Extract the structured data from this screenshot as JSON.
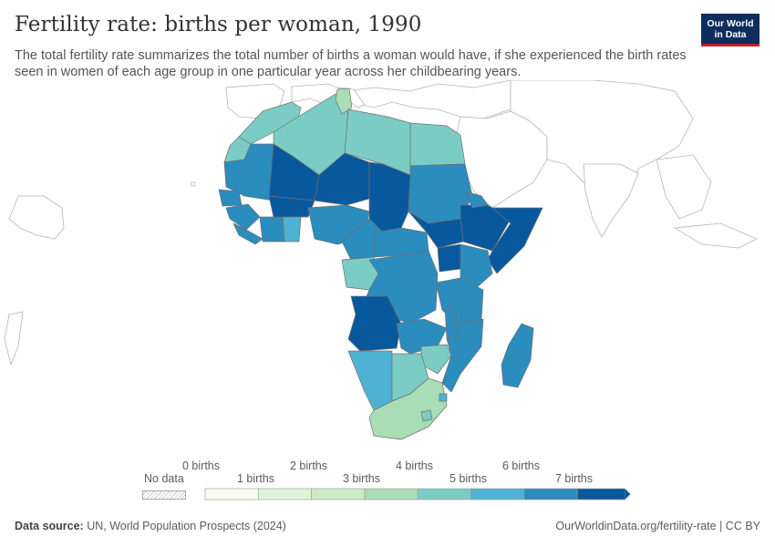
{
  "header": {
    "title": "Fertility rate: births per woman, 1990",
    "subtitle": "The total fertility rate summarizes the total number of births a woman would have, if she experienced the birth rates seen in women of each age group in one particular year across her childbearing years."
  },
  "logo": {
    "line1": "Our World",
    "line2": "in Data",
    "bg_color": "#0c2d5e",
    "accent_color": "#c2202f"
  },
  "legend": {
    "no_data_label": "No data",
    "top_labels": [
      "0 births",
      "2 births",
      "4 births",
      "6 births"
    ],
    "bottom_labels": [
      "1 births",
      "3 births",
      "5 births",
      "7 births"
    ],
    "colors": [
      "#f7fcf0",
      "#e0f3db",
      "#ccebc5",
      "#a8ddb5",
      "#7bccc4",
      "#4eb3d3",
      "#2b8cbe",
      "#08589e"
    ]
  },
  "footer": {
    "source_label": "Data source:",
    "source_text": "UN, World Population Prospects (2024)",
    "url_text": "OurWorldinData.org/fertility-rate | CC BY"
  },
  "map_data": {
    "region": "Africa",
    "year": 1990,
    "colors": {
      "c3": "#ccebc5",
      "c4": "#a8ddb5",
      "c5": "#7bccc4",
      "c6": "#4eb3d3",
      "c7": "#2b8cbe",
      "c8": "#08589e"
    }
  }
}
